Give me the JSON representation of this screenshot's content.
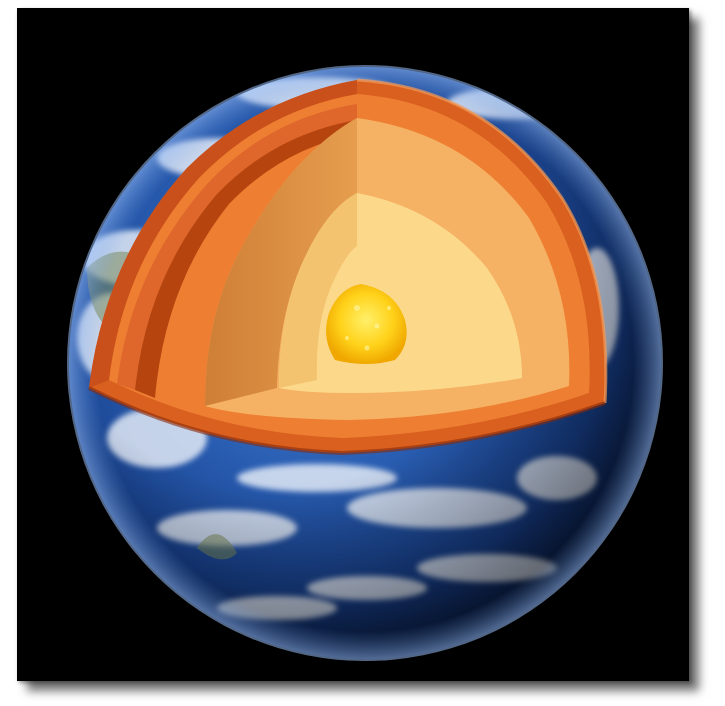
{
  "image": {
    "subject": "earth-cutaway",
    "background_color": "#000000",
    "frame_shadow_color": "#6b6b6b",
    "layers": [
      {
        "id": "crust",
        "color": "#e0672c"
      },
      {
        "id": "upper-mantle",
        "color": "#f08a3a"
      },
      {
        "id": "lower-mantle",
        "color": "#f7b96a"
      },
      {
        "id": "outer-core",
        "color": "#fbe394"
      },
      {
        "id": "inner-core",
        "color": "#ffd21a"
      }
    ],
    "ocean_color": "#1d4fa3",
    "cloud_color": "#f2f6fb"
  }
}
